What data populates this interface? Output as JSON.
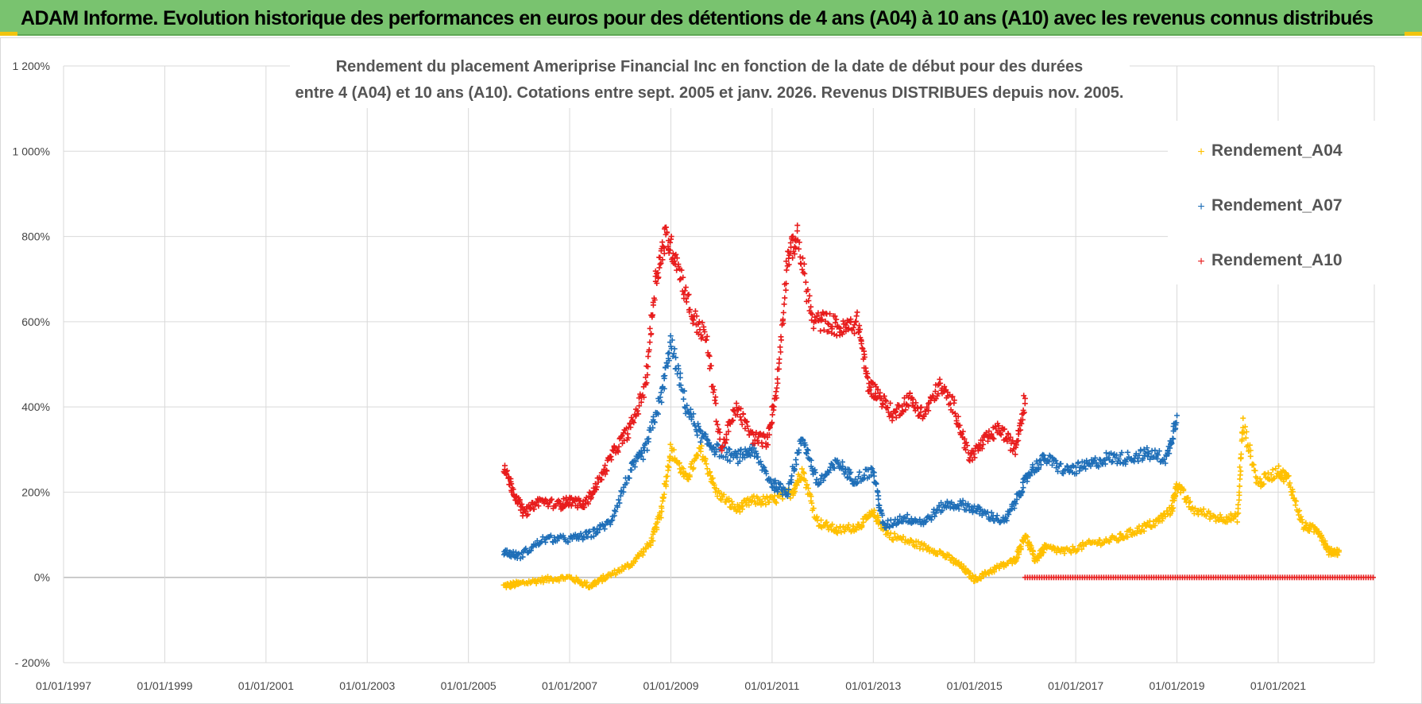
{
  "banner": {
    "title": "ADAM Informe. Evolution historique des performances en euros pour des détentions de 4 ans (A04) à 10 ans (A10) avec les revenus connus distribués"
  },
  "colors": {
    "banner_bg": "#79c36f",
    "A04": "#ffc000",
    "A07": "#1f6fb8",
    "A10": "#e81c1c",
    "grid": "#d9d9d9",
    "zero_line": "#bfbfbf"
  },
  "chart_data": {
    "type": "scatter",
    "title_lines": [
      "Rendement du placement Ameriprise Financial Inc en fonction de la date de début pour des durées",
      "entre 4 (A04) et 10 ans (A10). Cotations entre sept. 2005 et janv. 2026. Revenus DISTRIBUES depuis nov. 2005."
    ],
    "xlabel": "",
    "ylabel": "",
    "x_is_year": true,
    "xlim": [
      1997.0,
      2022.9
    ],
    "ylim": [
      -200,
      1200
    ],
    "y_ticks": [
      -200,
      0,
      200,
      400,
      600,
      800,
      1000,
      1200
    ],
    "y_tick_labels": [
      "- 200%",
      "0%",
      "200%",
      "400%",
      "600%",
      "800%",
      "1 000%",
      "1 200%"
    ],
    "x_ticks": [
      1997,
      1999,
      2001,
      2003,
      2005,
      2007,
      2009,
      2011,
      2013,
      2015,
      2017,
      2019,
      2021
    ],
    "x_tick_labels": [
      "01/01/1997",
      "01/01/1999",
      "01/01/2001",
      "01/01/2003",
      "01/01/2005",
      "01/01/2007",
      "01/01/2009",
      "01/01/2011",
      "01/01/2013",
      "01/01/2015",
      "01/01/2017",
      "01/01/2019",
      "01/01/2021"
    ],
    "legend_position": "top-right",
    "series": [
      {
        "name": "Rendement_A04",
        "color": "#ffc000",
        "x": [
          2005.7,
          2006.0,
          2006.5,
          2007.0,
          2007.4,
          2007.7,
          2008.2,
          2008.6,
          2008.8,
          2009.0,
          2009.3,
          2009.6,
          2009.9,
          2010.3,
          2010.6,
          2011.0,
          2011.4,
          2011.6,
          2011.9,
          2012.3,
          2012.7,
          2013.0,
          2013.3,
          2013.8,
          2014.3,
          2014.7,
          2015.0,
          2015.4,
          2015.8,
          2016.0,
          2016.2,
          2016.4,
          2016.8,
          2017.3,
          2017.8,
          2018.2,
          2018.6,
          2018.9,
          2019.0,
          2019.3,
          2019.8,
          2020.2,
          2020.3,
          2020.6,
          2021.0,
          2021.2,
          2021.5,
          2021.8,
          2022.0,
          2022.2
        ],
        "y": [
          -20,
          -15,
          -5,
          0,
          -20,
          0,
          30,
          80,
          150,
          300,
          230,
          300,
          200,
          160,
          180,
          180,
          200,
          250,
          130,
          110,
          120,
          150,
          100,
          80,
          60,
          30,
          -5,
          20,
          40,
          100,
          40,
          70,
          60,
          80,
          90,
          110,
          130,
          160,
          220,
          160,
          140,
          140,
          360,
          220,
          250,
          230,
          120,
          110,
          60,
          60
        ]
      },
      {
        "name": "Rendement_A07",
        "color": "#1f6fb8",
        "x": [
          2005.7,
          2006.0,
          2006.5,
          2007.0,
          2007.4,
          2007.8,
          2008.2,
          2008.5,
          2008.8,
          2009.0,
          2009.3,
          2009.6,
          2009.9,
          2010.3,
          2010.6,
          2011.0,
          2011.3,
          2011.6,
          2011.9,
          2012.3,
          2012.6,
          2013.0,
          2013.2,
          2013.6,
          2014.0,
          2014.4,
          2014.8,
          2015.2,
          2015.6,
          2015.9,
          2016.1,
          2016.4,
          2016.8,
          2017.2,
          2017.6,
          2018.0,
          2018.4,
          2018.8,
          2019.0
        ],
        "y": [
          60,
          50,
          90,
          90,
          100,
          130,
          250,
          300,
          420,
          550,
          400,
          330,
          300,
          280,
          300,
          220,
          200,
          330,
          220,
          270,
          230,
          250,
          120,
          140,
          130,
          170,
          170,
          150,
          130,
          200,
          250,
          280,
          250,
          260,
          280,
          280,
          290,
          280,
          380
        ]
      },
      {
        "name": "Rendement_A10",
        "color": "#e81c1c",
        "x": [
          2005.7,
          2005.9,
          2006.1,
          2006.4,
          2006.8,
          2007.0,
          2007.3,
          2007.6,
          2007.9,
          2008.2,
          2008.5,
          2008.7,
          2008.9,
          2009.1,
          2009.4,
          2009.7,
          2010.0,
          2010.3,
          2010.6,
          2010.9,
          2011.1,
          2011.3,
          2011.5,
          2011.8,
          2012.1,
          2012.4,
          2012.7,
          2012.9,
          2013.1,
          2013.4,
          2013.7,
          2014.0,
          2014.3,
          2014.6,
          2014.9,
          2015.2,
          2015.5,
          2015.8,
          2016.0
        ],
        "y": [
          260,
          200,
          150,
          180,
          170,
          180,
          170,
          230,
          300,
          350,
          450,
          700,
          800,
          750,
          620,
          560,
          300,
          400,
          330,
          320,
          450,
          750,
          800,
          600,
          600,
          580,
          600,
          450,
          430,
          380,
          420,
          380,
          450,
          400,
          280,
          320,
          350,
          300,
          420
        ]
      }
    ],
    "flat_segment": {
      "series": "Rendement_A10",
      "x_start": 2016.0,
      "x_end": 2022.9,
      "y": 0
    }
  }
}
